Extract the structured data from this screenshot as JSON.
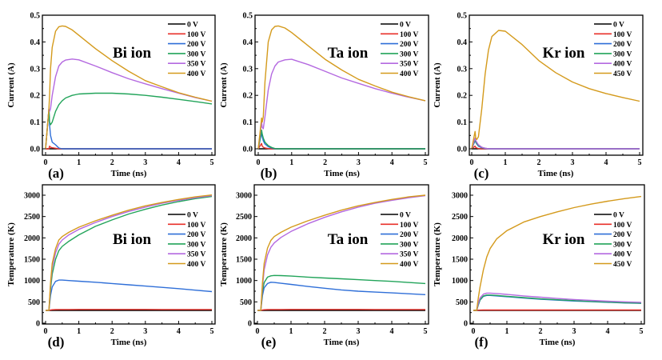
{
  "colors": {
    "0 V": "#000000",
    "100 V": "#e8302a",
    "200 V": "#2f6fd8",
    "300 V": "#22a45a",
    "350 V": "#b469e0",
    "400 V": "#d49a1c",
    "450 V": "#d49a1c",
    "400 V (Kr)": "#b469e0"
  },
  "chart_data": [
    {
      "panel": "(a)",
      "type": "line",
      "annotation": "Bi ion",
      "xlabel": "Time (ns)",
      "ylabel": "Current (A)",
      "xlim": [
        0,
        5
      ],
      "ylim": [
        0,
        0.5
      ],
      "xticks": [
        "0",
        "1",
        "2",
        "3",
        "4",
        "5"
      ],
      "yticks": [
        "0.0",
        "0.1",
        "0.2",
        "0.3",
        "0.4",
        "0.5"
      ],
      "legend": "top-right",
      "x": [
        0,
        0.1,
        0.12,
        0.15,
        0.2,
        0.3,
        0.4,
        0.5,
        0.6,
        0.8,
        1,
        1.5,
        2,
        2.5,
        3,
        3.5,
        4,
        4.5,
        5
      ],
      "series": [
        {
          "name": "0 V",
          "color_key": "0 V",
          "values": [
            0,
            0,
            0,
            0,
            0,
            0,
            0,
            0,
            0,
            0,
            0,
            0,
            0,
            0,
            0,
            0,
            0,
            0,
            0
          ]
        },
        {
          "name": "100 V",
          "color_key": "100 V",
          "values": [
            0,
            0,
            0.01,
            0.006,
            0.004,
            0.002,
            0,
            0,
            0,
            0,
            0,
            0,
            0,
            0,
            0,
            0,
            0,
            0,
            0
          ]
        },
        {
          "name": "200 V",
          "color_key": "200 V",
          "values": [
            0,
            0.15,
            0.09,
            0.05,
            0.025,
            0.015,
            0.003,
            0,
            0,
            0,
            0,
            0,
            0,
            0,
            0,
            0,
            0,
            0,
            0
          ]
        },
        {
          "name": "300 V",
          "color_key": "300 V",
          "values": [
            0,
            0.15,
            0.1,
            0.09,
            0.1,
            0.14,
            0.165,
            0.18,
            0.19,
            0.2,
            0.205,
            0.208,
            0.208,
            0.205,
            0.2,
            0.193,
            0.185,
            0.177,
            0.168
          ]
        },
        {
          "name": "350 V",
          "color_key": "350 V",
          "values": [
            0,
            0.15,
            0.14,
            0.15,
            0.2,
            0.27,
            0.31,
            0.325,
            0.332,
            0.336,
            0.333,
            0.31,
            0.285,
            0.262,
            0.243,
            0.225,
            0.208,
            0.192,
            0.178
          ]
        },
        {
          "name": "400 V",
          "color_key": "400 V",
          "values": [
            0,
            0.15,
            0.2,
            0.3,
            0.38,
            0.44,
            0.457,
            0.46,
            0.458,
            0.445,
            0.425,
            0.375,
            0.33,
            0.29,
            0.255,
            0.232,
            0.21,
            0.193,
            0.178
          ]
        }
      ]
    },
    {
      "panel": "(b)",
      "type": "line",
      "annotation": "Ta ion",
      "xlabel": "Time (ns)",
      "ylabel": "Current (A)",
      "xlim": [
        0,
        5
      ],
      "ylim": [
        0,
        0.5
      ],
      "xticks": [
        "0",
        "1",
        "2",
        "3",
        "4",
        "5"
      ],
      "yticks": [
        "0.0",
        "0.1",
        "0.2",
        "0.3",
        "0.4",
        "0.5"
      ],
      "legend": "top-right",
      "x": [
        0,
        0.1,
        0.12,
        0.15,
        0.2,
        0.3,
        0.4,
        0.5,
        0.6,
        0.8,
        1,
        1.5,
        2,
        2.5,
        3,
        3.5,
        4,
        4.5,
        5
      ],
      "series": [
        {
          "name": "0 V",
          "color_key": "0 V",
          "values": [
            0,
            0,
            0,
            0,
            0,
            0,
            0,
            0,
            0,
            0,
            0,
            0,
            0,
            0,
            0,
            0,
            0,
            0,
            0
          ]
        },
        {
          "name": "100 V",
          "color_key": "100 V",
          "values": [
            0,
            0.02,
            0.01,
            0.006,
            0.003,
            0.001,
            0,
            0,
            0,
            0,
            0,
            0,
            0,
            0,
            0,
            0,
            0,
            0,
            0
          ]
        },
        {
          "name": "200 V",
          "color_key": "200 V",
          "values": [
            0,
            0.06,
            0.045,
            0.03,
            0.018,
            0.008,
            0.003,
            0,
            0,
            0,
            0,
            0,
            0,
            0,
            0,
            0,
            0,
            0,
            0
          ]
        },
        {
          "name": "300 V",
          "color_key": "300 V",
          "values": [
            0,
            0.07,
            0.055,
            0.04,
            0.025,
            0.012,
            0.005,
            0.001,
            0,
            0,
            0,
            0,
            0,
            0,
            0,
            0,
            0,
            0,
            0
          ]
        },
        {
          "name": "350 V",
          "color_key": "350 V",
          "values": [
            0,
            0.1,
            0.08,
            0.075,
            0.12,
            0.22,
            0.28,
            0.31,
            0.325,
            0.333,
            0.335,
            0.315,
            0.29,
            0.265,
            0.245,
            0.225,
            0.208,
            0.193,
            0.18
          ]
        },
        {
          "name": "400 V",
          "color_key": "400 V",
          "values": [
            0,
            0.115,
            0.1,
            0.12,
            0.25,
            0.4,
            0.445,
            0.458,
            0.46,
            0.452,
            0.435,
            0.385,
            0.335,
            0.295,
            0.26,
            0.235,
            0.212,
            0.195,
            0.18
          ]
        }
      ]
    },
    {
      "panel": "(c)",
      "type": "line",
      "annotation": "Kr ion",
      "xlabel": "Time (ns)",
      "ylabel": "Current (A)",
      "xlim": [
        0,
        5
      ],
      "ylim": [
        0,
        0.5
      ],
      "xticks": [
        "0",
        "1",
        "2",
        "3",
        "4",
        "5"
      ],
      "yticks": [
        "0.0",
        "0.1",
        "0.2",
        "0.3",
        "0.4",
        "0.5"
      ],
      "legend": "top-right",
      "x": [
        0,
        0.1,
        0.12,
        0.15,
        0.2,
        0.3,
        0.4,
        0.5,
        0.6,
        0.8,
        1,
        1.5,
        2,
        2.5,
        3,
        3.5,
        4,
        4.5,
        5
      ],
      "series": [
        {
          "name": "0 V",
          "color_key": "0 V",
          "values": [
            0,
            0,
            0,
            0,
            0,
            0,
            0,
            0,
            0,
            0,
            0,
            0,
            0,
            0,
            0,
            0,
            0,
            0,
            0
          ]
        },
        {
          "name": "100 V",
          "color_key": "100 V",
          "values": [
            0,
            0.01,
            0.005,
            0.003,
            0.001,
            0,
            0,
            0,
            0,
            0,
            0,
            0,
            0,
            0,
            0,
            0,
            0,
            0,
            0
          ]
        },
        {
          "name": "200 V",
          "color_key": "200 V",
          "values": [
            0,
            0.03,
            0.025,
            0.018,
            0.01,
            0.004,
            0.001,
            0,
            0,
            0,
            0,
            0,
            0,
            0,
            0,
            0,
            0,
            0,
            0
          ]
        },
        {
          "name": "300 V",
          "color_key": "300 V",
          "values": [
            0,
            0.035,
            0.028,
            0.02,
            0.012,
            0.005,
            0.002,
            0,
            0,
            0,
            0,
            0,
            0,
            0,
            0,
            0,
            0,
            0,
            0
          ]
        },
        {
          "name": "400 V",
          "color_key": "400 V (Kr)",
          "values": [
            0,
            0.04,
            0.032,
            0.025,
            0.015,
            0.006,
            0.002,
            0,
            0,
            0,
            0,
            0,
            0,
            0,
            0,
            0,
            0,
            0,
            0
          ]
        },
        {
          "name": "450 V",
          "color_key": "450 V",
          "values": [
            0,
            0.065,
            0.04,
            0.035,
            0.045,
            0.15,
            0.28,
            0.37,
            0.42,
            0.443,
            0.44,
            0.39,
            0.33,
            0.285,
            0.25,
            0.225,
            0.207,
            0.192,
            0.178
          ]
        }
      ]
    },
    {
      "panel": "(d)",
      "type": "line",
      "annotation": "Bi ion",
      "xlabel": "Time (ns)",
      "ylabel": "Temperature (K)",
      "xlim": [
        0,
        5
      ],
      "ylim": [
        0,
        3250
      ],
      "xticks": [
        "0",
        "1",
        "2",
        "3",
        "4",
        "5"
      ],
      "yticks": [
        "0",
        "500",
        "1000",
        "1500",
        "2000",
        "2500",
        "3000"
      ],
      "legend": "right",
      "x": [
        0,
        0.1,
        0.15,
        0.2,
        0.3,
        0.4,
        0.5,
        0.7,
        1,
        1.5,
        2,
        2.5,
        3,
        3.5,
        4,
        4.5,
        5
      ],
      "series": [
        {
          "name": "0 V",
          "color_key": "0 V",
          "values": [
            300,
            300,
            300,
            300,
            300,
            300,
            300,
            300,
            300,
            300,
            300,
            300,
            300,
            300,
            300,
            300,
            300
          ]
        },
        {
          "name": "100 V",
          "color_key": "100 V",
          "values": [
            300,
            300,
            310,
            315,
            318,
            320,
            320,
            321,
            322,
            322,
            322,
            322,
            322,
            321,
            321,
            320,
            320
          ]
        },
        {
          "name": "200 V",
          "color_key": "200 V",
          "values": [
            300,
            300,
            650,
            850,
            980,
            1010,
            1010,
            1000,
            985,
            960,
            930,
            900,
            870,
            840,
            810,
            775,
            740
          ]
        },
        {
          "name": "300 V",
          "color_key": "300 V",
          "values": [
            300,
            300,
            800,
            1150,
            1500,
            1700,
            1800,
            1920,
            2070,
            2270,
            2420,
            2560,
            2670,
            2770,
            2850,
            2920,
            2970
          ]
        },
        {
          "name": "350 V",
          "color_key": "350 V",
          "values": [
            300,
            300,
            900,
            1300,
            1650,
            1850,
            1950,
            2070,
            2200,
            2360,
            2500,
            2620,
            2720,
            2810,
            2880,
            2940,
            2990
          ]
        },
        {
          "name": "400 V",
          "color_key": "400 V",
          "values": [
            300,
            300,
            950,
            1400,
            1750,
            1950,
            2030,
            2130,
            2250,
            2400,
            2530,
            2650,
            2750,
            2830,
            2900,
            2960,
            3005
          ]
        }
      ]
    },
    {
      "panel": "(e)",
      "type": "line",
      "annotation": "Ta ion",
      "xlabel": "Time (ns)",
      "ylabel": "Temperature (K)",
      "xlim": [
        0,
        5
      ],
      "ylim": [
        0,
        3250
      ],
      "xticks": [
        "0",
        "1",
        "2",
        "3",
        "4",
        "5"
      ],
      "yticks": [
        "0",
        "500",
        "1000",
        "1500",
        "2000",
        "2500",
        "3000"
      ],
      "legend": "right",
      "x": [
        0,
        0.1,
        0.15,
        0.2,
        0.3,
        0.4,
        0.5,
        0.7,
        1,
        1.5,
        2,
        2.5,
        3,
        3.5,
        4,
        4.5,
        5
      ],
      "series": [
        {
          "name": "0 V",
          "color_key": "0 V",
          "values": [
            300,
            300,
            300,
            300,
            300,
            300,
            300,
            300,
            300,
            300,
            300,
            300,
            300,
            300,
            300,
            300,
            300
          ]
        },
        {
          "name": "100 V",
          "color_key": "100 V",
          "values": [
            300,
            300,
            310,
            315,
            318,
            320,
            320,
            321,
            322,
            322,
            322,
            322,
            322,
            321,
            321,
            320,
            320
          ]
        },
        {
          "name": "200 V",
          "color_key": "200 V",
          "values": [
            300,
            300,
            650,
            830,
            930,
            960,
            955,
            935,
            910,
            860,
            820,
            780,
            750,
            730,
            710,
            690,
            670
          ]
        },
        {
          "name": "300 V",
          "color_key": "300 V",
          "values": [
            300,
            300,
            750,
            950,
            1080,
            1110,
            1120,
            1115,
            1105,
            1080,
            1060,
            1040,
            1020,
            1000,
            980,
            955,
            930
          ]
        },
        {
          "name": "350 V",
          "color_key": "350 V",
          "values": [
            300,
            300,
            850,
            1250,
            1600,
            1780,
            1880,
            2010,
            2150,
            2330,
            2480,
            2610,
            2720,
            2810,
            2880,
            2940,
            2990
          ]
        },
        {
          "name": "400 V",
          "color_key": "400 V",
          "values": [
            300,
            300,
            950,
            1400,
            1760,
            1940,
            2030,
            2130,
            2250,
            2400,
            2530,
            2650,
            2750,
            2830,
            2900,
            2960,
            3000
          ]
        }
      ]
    },
    {
      "panel": "(f)",
      "type": "line",
      "annotation": "Kr ion",
      "xlabel": "Time (ns)",
      "ylabel": "Temperature (K)",
      "xlim": [
        0,
        5
      ],
      "ylim": [
        0,
        3250
      ],
      "xticks": [
        "0",
        "1",
        "2",
        "3",
        "4",
        "5"
      ],
      "yticks": [
        "0",
        "500",
        "1000",
        "1500",
        "2000",
        "2500",
        "3000"
      ],
      "legend": "right",
      "x": [
        0,
        0.1,
        0.15,
        0.2,
        0.3,
        0.4,
        0.5,
        0.7,
        1,
        1.5,
        2,
        2.5,
        3,
        3.5,
        4,
        4.5,
        5
      ],
      "series": [
        {
          "name": "0 V",
          "color_key": "0 V",
          "values": [
            300,
            300,
            300,
            300,
            300,
            300,
            300,
            300,
            300,
            300,
            300,
            300,
            300,
            300,
            300,
            300,
            300
          ]
        },
        {
          "name": "100 V",
          "color_key": "100 V",
          "values": [
            300,
            300,
            305,
            308,
            310,
            310,
            310,
            310,
            310,
            310,
            310,
            310,
            310,
            310,
            310,
            310,
            310
          ]
        },
        {
          "name": "200 V",
          "color_key": "200 V",
          "values": [
            300,
            300,
            430,
            540,
            630,
            650,
            650,
            640,
            620,
            590,
            560,
            540,
            520,
            505,
            490,
            475,
            465
          ]
        },
        {
          "name": "300 V",
          "color_key": "300 V",
          "values": [
            300,
            300,
            440,
            550,
            640,
            660,
            660,
            650,
            630,
            600,
            570,
            550,
            530,
            510,
            495,
            480,
            470
          ]
        },
        {
          "name": "400 V",
          "color_key": "400 V (Kr)",
          "values": [
            300,
            300,
            470,
            590,
            680,
            705,
            705,
            695,
            675,
            640,
            610,
            580,
            555,
            535,
            515,
            500,
            490
          ]
        },
        {
          "name": "450 V",
          "color_key": "450 V",
          "values": [
            300,
            300,
            600,
            850,
            1250,
            1550,
            1750,
            1980,
            2170,
            2370,
            2500,
            2610,
            2710,
            2790,
            2860,
            2920,
            2970
          ]
        }
      ]
    }
  ]
}
